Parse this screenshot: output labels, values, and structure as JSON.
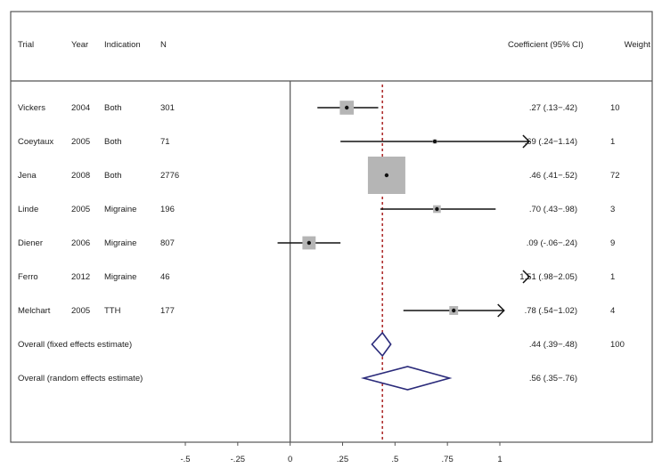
{
  "chart_data": {
    "type": "forest",
    "headers": {
      "trial": "Trial",
      "year": "Year",
      "indication": "Indication",
      "n": "N",
      "ci": "Coefficient (95% CI)",
      "weight": "Weight"
    },
    "studies": [
      {
        "trial": "Vickers",
        "year": "2004",
        "indication": "Both",
        "n": "301",
        "est": 0.27,
        "lo": 0.13,
        "hi": 0.42,
        "ci_text": ".27 (.13−.42)",
        "weight": "10",
        "w": 10,
        "arrow_hi": false,
        "arrow_lo": false
      },
      {
        "trial": "Coeytaux",
        "year": "2005",
        "indication": "Both",
        "n": "71",
        "est": 0.69,
        "lo": 0.24,
        "hi": 1.14,
        "ci_text": ".69 (.24−1.14)",
        "weight": "1",
        "w": 1,
        "arrow_hi": true,
        "arrow_lo": false
      },
      {
        "trial": "Jena",
        "year": "2008",
        "indication": "Both",
        "n": "2776",
        "est": 0.46,
        "lo": 0.41,
        "hi": 0.52,
        "ci_text": ".46 (.41−.52)",
        "weight": "72",
        "w": 72,
        "arrow_hi": false,
        "arrow_lo": false
      },
      {
        "trial": "Linde",
        "year": "2005",
        "indication": "Migraine",
        "n": "196",
        "est": 0.7,
        "lo": 0.43,
        "hi": 0.98,
        "ci_text": ".70 (.43−.98)",
        "weight": "3",
        "w": 3,
        "arrow_hi": false,
        "arrow_lo": false
      },
      {
        "trial": "Diener",
        "year": "2006",
        "indication": "Migraine",
        "n": "807",
        "est": 0.09,
        "lo": -0.06,
        "hi": 0.24,
        "ci_text": ".09 (-.06−.24)",
        "weight": "9",
        "w": 9,
        "arrow_hi": false,
        "arrow_lo": false
      },
      {
        "trial": "Ferro",
        "year": "2012",
        "indication": "Migraine",
        "n": "46",
        "est": 1.51,
        "lo": 0.98,
        "hi": 2.05,
        "ci_text": "1.51 (.98−2.05)",
        "weight": "1",
        "w": 1,
        "arrow_hi": false,
        "arrow_lo": true
      },
      {
        "trial": "Melchart",
        "year": "2005",
        "indication": "TTH",
        "n": "177",
        "est": 0.78,
        "lo": 0.54,
        "hi": 1.02,
        "ci_text": ".78 (.54−1.02)",
        "weight": "4",
        "w": 4,
        "arrow_hi": true,
        "arrow_lo": false
      }
    ],
    "overall": [
      {
        "label": "Overall (fixed effects estimate)",
        "est": 0.44,
        "lo": 0.39,
        "hi": 0.48,
        "ci_text": ".44 (.39−.48)",
        "weight": "100"
      },
      {
        "label": "Overall (random effects estimate)",
        "est": 0.56,
        "lo": 0.35,
        "hi": 0.76,
        "ci_text": ".56 (.35−.76)",
        "weight": ""
      }
    ],
    "x_ticks": [
      {
        "value": -0.5,
        "label": "-.5"
      },
      {
        "value": -0.25,
        "label": "-.25"
      },
      {
        "value": 0,
        "label": "0"
      },
      {
        "value": 0.25,
        "label": ".25"
      },
      {
        "value": 0.5,
        "label": ".5"
      },
      {
        "value": 0.75,
        "label": ".75"
      },
      {
        "value": 1,
        "label": "1"
      }
    ],
    "xlim": [
      -0.5,
      1
    ],
    "null_line": 0,
    "reference_line": 0.44,
    "colors": {
      "box": "#b5b5b5",
      "line": "#111111",
      "diamond": "#2a2a7a",
      "reference": "#b03030",
      "frame": "#555555"
    }
  }
}
